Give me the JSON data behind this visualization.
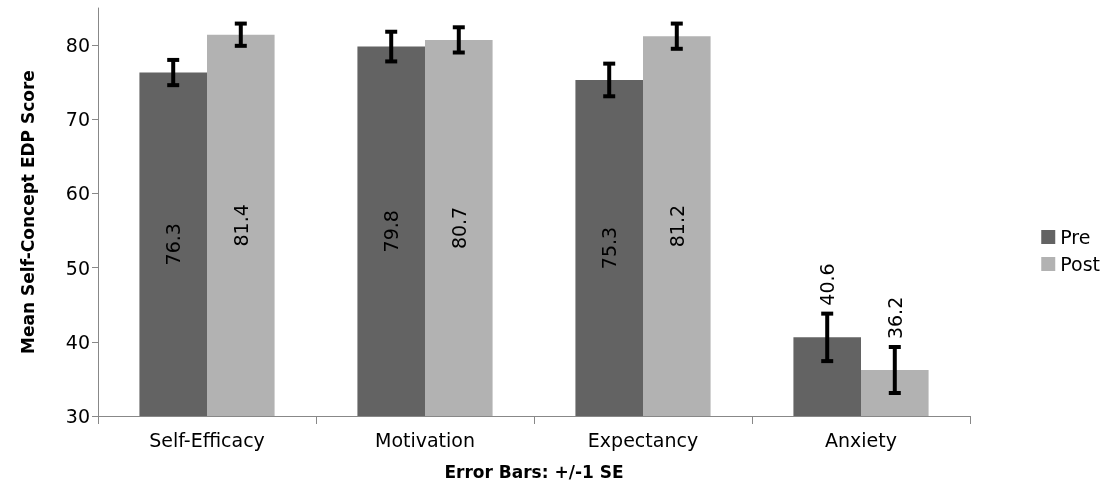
{
  "chart_data": {
    "type": "bar",
    "xlabel": "Error Bars: +/-1 SE",
    "ylabel": "Mean Self-Concept EDP Score",
    "categories": [
      "Self-Efficacy",
      "Motivation",
      "Expectancy",
      "Anxiety"
    ],
    "series": [
      {
        "name": "Pre",
        "color": "#636363",
        "values": [
          76.3,
          79.8,
          75.3,
          40.6
        ],
        "errors": [
          1.7,
          2.0,
          2.2,
          3.2
        ]
      },
      {
        "name": "Post",
        "color": "#b2b2b2",
        "values": [
          81.4,
          80.7,
          81.2,
          36.2
        ],
        "errors": [
          1.5,
          1.7,
          1.7,
          3.1
        ]
      }
    ],
    "ylim": [
      30,
      85
    ],
    "yticks": [
      30,
      40,
      50,
      60,
      70,
      80
    ],
    "grid": false,
    "legend": "right",
    "data_labels": true
  }
}
